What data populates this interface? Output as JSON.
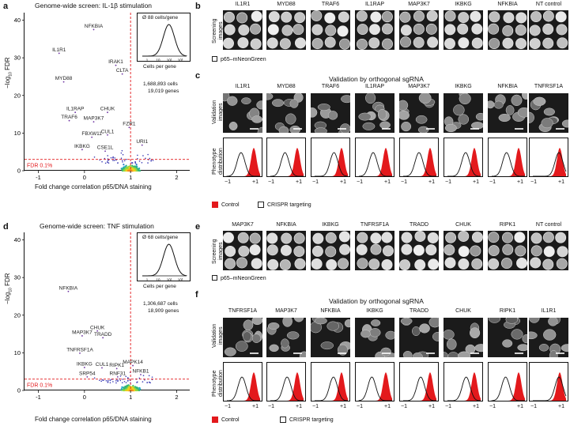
{
  "panel_a": {
    "letter": "a",
    "title": "Genome-wide screen: IL-1β stimulation",
    "ylabel_prefix": "−log",
    "ylabel_sub": "10",
    "ylabel_suffix": " FDR",
    "xlabel": "Fold change correlation p65/DNA staining",
    "fdr_label": "FDR 0.1%",
    "inset_note": "Ø 88 cells/gene",
    "inset_xlabel": "Cells per gene",
    "stats_cells": "1,688,893 cells",
    "stats_genes": "19,019 genes"
  },
  "panel_d": {
    "letter": "d",
    "title": "Genome-wide screen: TNF stimulation",
    "ylabel_prefix": "−log",
    "ylabel_sub": "10",
    "ylabel_suffix": " FDR",
    "xlabel": "Fold change correlation p65/DNA staining",
    "fdr_label": "FDR 0.1%",
    "inset_note": "Ø 68 cells/gene",
    "inset_xlabel": "Cells per gene",
    "stats_cells": "1,306,687 cells",
    "stats_genes": "18,909 genes"
  },
  "inset_ticks": [
    "1",
    "10",
    "10²",
    "10³"
  ],
  "panel_b": {
    "letter": "b",
    "genes": [
      "IL1R1",
      "MYD88",
      "TRAF6",
      "IL1RAP",
      "MAP3K7",
      "IKBKG",
      "NFKBIA",
      "NT control"
    ],
    "row_label_1": "Screening",
    "row_label_2": "images",
    "legend": "p65–mNeonGreen"
  },
  "panel_c": {
    "letter": "c",
    "title": "Validation by orthogonal sgRNA",
    "genes": [
      "IL1R1",
      "MYD88",
      "TRAF6",
      "IL1RAP",
      "MAP3K7",
      "IKBKG",
      "NFKBIA",
      "TNFRSF1A"
    ],
    "img_label_1": "Validation",
    "img_label_2": "images",
    "dist_label_1": "Phenotype",
    "dist_label_2": "distribution",
    "tick_left": "−1",
    "tick_right": "+1",
    "legend_control": "Control",
    "legend_crispr": "CRISPR targeting"
  },
  "panel_e": {
    "letter": "e",
    "genes": [
      "MAP3K7",
      "NFKBIA",
      "IKBKG",
      "TNFRSF1A",
      "TRADD",
      "CHUK",
      "RIPK1",
      "NT control"
    ],
    "row_label_1": "Screening",
    "row_label_2": "images",
    "legend": "p65–mNeonGreen"
  },
  "panel_f": {
    "letter": "f",
    "title": "Validation by orthogonal sgRNA",
    "genes": [
      "TNFRSF1A",
      "MAP3K7",
      "NFKBIA",
      "IKBKG",
      "TRADD",
      "CHUK",
      "RIPK1",
      "IL1R1"
    ],
    "img_label_1": "Validation",
    "img_label_2": "images",
    "dist_label_1": "Phenotype",
    "dist_label_2": "distribution",
    "tick_left": "−1",
    "tick_right": "+1",
    "legend_control": "Control",
    "legend_crispr": "CRISPR targeting"
  },
  "colors": {
    "red": "#e3191c",
    "hit": "#6a2fa0",
    "axis": "#111111"
  },
  "chart_data": [
    {
      "type": "scatter",
      "title": "Genome-wide screen: IL-1β stimulation",
      "xlabel": "Fold change correlation p65/DNA staining",
      "ylabel": "−log10 FDR",
      "xlim": [
        -1.3,
        2.3
      ],
      "ylim": [
        0,
        42
      ],
      "xticks": [
        -1,
        0,
        1,
        2
      ],
      "yticks": [
        0,
        10,
        20,
        30,
        40
      ],
      "threshold_y": 3,
      "threshold_x": 1,
      "points": [
        {
          "label": "NFKBIA",
          "x": 0.2,
          "y": 37.5
        },
        {
          "label": "IL1R1",
          "x": -0.55,
          "y": 31.2
        },
        {
          "label": "IRAK1",
          "x": 0.68,
          "y": 28.0
        },
        {
          "label": "CLTA",
          "x": 0.82,
          "y": 25.7
        },
        {
          "label": "MYD88",
          "x": -0.45,
          "y": 23.6
        },
        {
          "label": "CHUK",
          "x": 0.5,
          "y": 15.5
        },
        {
          "label": "IL1RAP",
          "x": -0.2,
          "y": 15.5
        },
        {
          "label": "TRAF6",
          "x": -0.33,
          "y": 13.3
        },
        {
          "label": "MAP3K7",
          "x": 0.2,
          "y": 13.0
        },
        {
          "label": "CUL1",
          "x": 0.5,
          "y": 9.5
        },
        {
          "label": "FBXW11",
          "x": 0.16,
          "y": 8.9
        },
        {
          "label": "IKBKG",
          "x": -0.05,
          "y": 5.6
        },
        {
          "label": "CSE1L",
          "x": 0.45,
          "y": 5.2
        },
        {
          "label": "FZR1",
          "x": 0.97,
          "y": 11.5
        },
        {
          "label": "URI1",
          "x": 1.25,
          "y": 6.8
        }
      ]
    },
    {
      "type": "scatter",
      "title": "Genome-wide screen: TNF stimulation",
      "xlabel": "Fold change correlation p65/DNA staining",
      "ylabel": "−log10 FDR",
      "xlim": [
        -1.3,
        2.3
      ],
      "ylim": [
        0,
        42
      ],
      "xticks": [
        -1,
        0,
        1,
        2
      ],
      "yticks": [
        0,
        10,
        20,
        30,
        40
      ],
      "threshold_y": 3,
      "threshold_x": 1,
      "points": [
        {
          "label": "NFKBIA",
          "x": -0.35,
          "y": 26.3
        },
        {
          "label": "CHUK",
          "x": 0.28,
          "y": 15.8
        },
        {
          "label": "MAP3K7",
          "x": -0.05,
          "y": 14.5
        },
        {
          "label": "TRADD",
          "x": 0.4,
          "y": 14.0
        },
        {
          "label": "TNFRSF1A",
          "x": -0.1,
          "y": 9.9
        },
        {
          "label": "IKBKG",
          "x": 0.0,
          "y": 6.1
        },
        {
          "label": "CUL1",
          "x": 0.38,
          "y": 6.0
        },
        {
          "label": "RIPK1",
          "x": 0.7,
          "y": 5.8
        },
        {
          "label": "SRP54",
          "x": 0.06,
          "y": 3.6
        },
        {
          "label": "RNF31",
          "x": 0.72,
          "y": 3.6
        },
        {
          "label": "MAPK14",
          "x": 1.05,
          "y": 6.6
        },
        {
          "label": "NFKB1",
          "x": 1.22,
          "y": 4.2
        }
      ]
    }
  ]
}
